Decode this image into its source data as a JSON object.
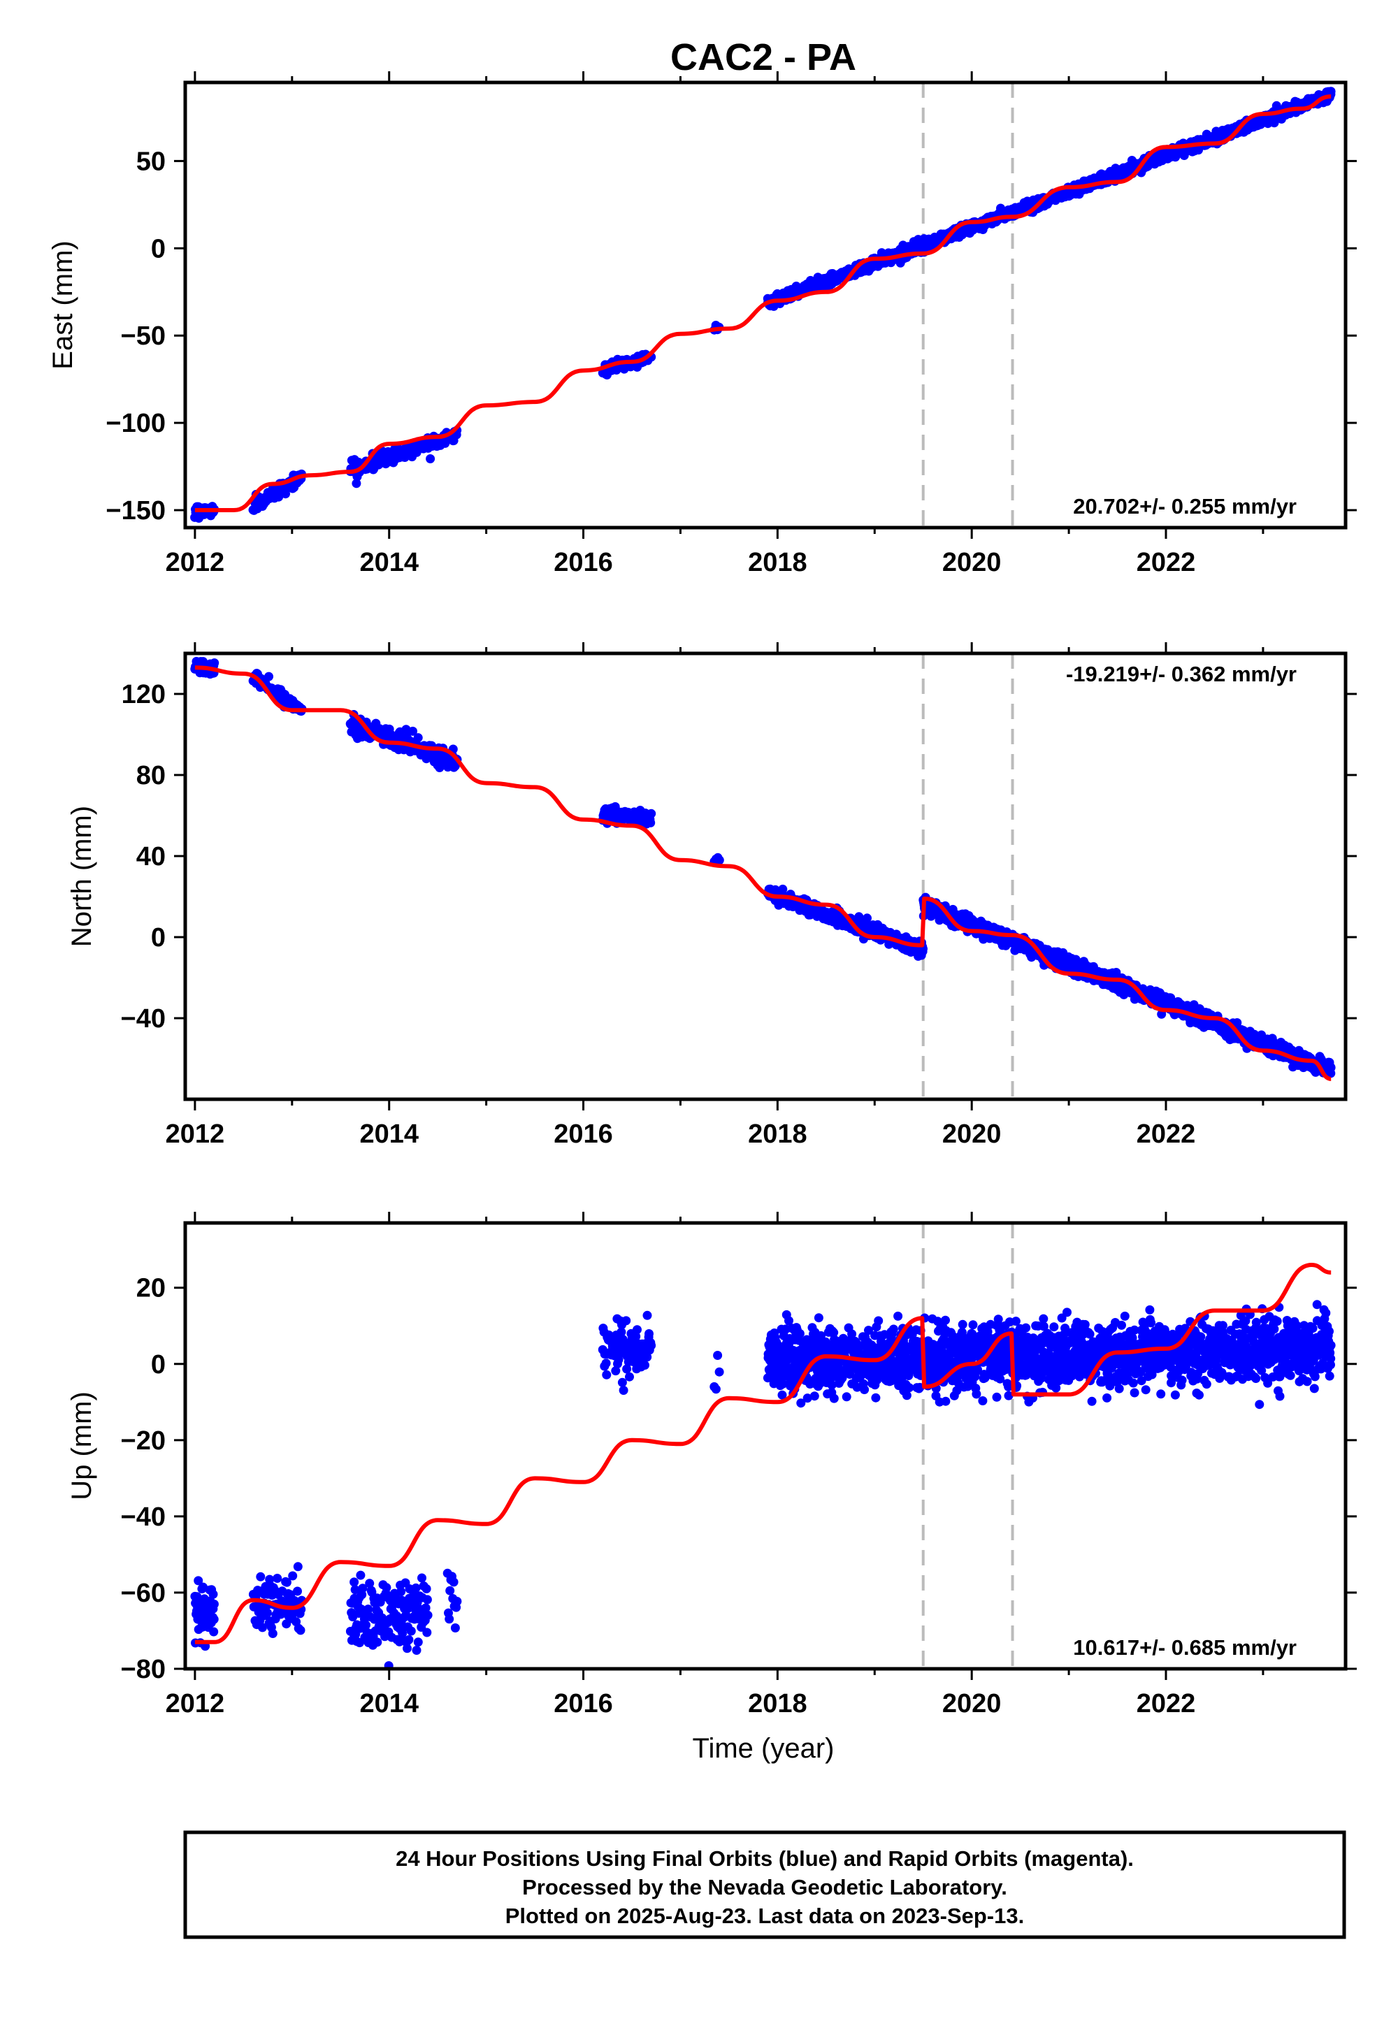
{
  "chart_data": {
    "type": "scatter",
    "title": "CAC2 - PA",
    "xlabel": "Time (year)",
    "xlim": [
      2011.9,
      2023.85
    ],
    "x_ticks": [
      2012,
      2014,
      2016,
      2018,
      2020,
      2022
    ],
    "x_tick_labels": [
      "2012",
      "2014",
      "2016",
      "2018",
      "2020",
      "2022"
    ],
    "event_lines": [
      2019.5,
      2020.42
    ],
    "colors": {
      "observed": "#0000ff",
      "model": "#ff0000",
      "event_line": "#bbbbbb"
    },
    "panels": [
      {
        "name": "east",
        "ylabel": "East (mm)",
        "ylim": [
          -160,
          95
        ],
        "y_ticks": [
          -150,
          -100,
          -50,
          0,
          50
        ],
        "y_tick_labels": [
          "−150",
          "−100",
          "−50",
          "0",
          "50"
        ],
        "rate_label": "20.702+/- 0.255 mm/yr",
        "rate_position": "bottom-right",
        "model": {
          "x": [
            2012.0,
            2012.4,
            2012.8,
            2013.2,
            2013.6,
            2014.0,
            2014.5,
            2015.0,
            2015.5,
            2016.0,
            2016.5,
            2017.0,
            2017.5,
            2018.0,
            2018.5,
            2019.0,
            2019.5,
            2020.0,
            2020.42,
            2021.0,
            2021.5,
            2022.0,
            2022.5,
            2023.0,
            2023.4,
            2023.7
          ],
          "y": [
            -150,
            -150,
            -135,
            -130,
            -128,
            -112,
            -108,
            -90,
            -88,
            -70,
            -65,
            -49,
            -46,
            -30,
            -25,
            -6,
            -3,
            15,
            18,
            35,
            38,
            58,
            60,
            77,
            80,
            87
          ]
        },
        "segments": [
          {
            "start": 2012.0,
            "end": 2012.2,
            "model_start": -150,
            "rate": 0,
            "scatter": 1.5,
            "n": 50
          },
          {
            "start": 2012.6,
            "end": 2013.1,
            "model_start": -148,
            "rate": 36,
            "scatter": 2.0,
            "n": 70
          },
          {
            "start": 2013.6,
            "end": 2014.7,
            "model_start": -127,
            "rate": 19,
            "scatter": 2.2,
            "n": 160
          },
          {
            "start": 2016.2,
            "end": 2016.7,
            "model_start": -70,
            "rate": 16,
            "scatter": 1.4,
            "n": 80
          },
          {
            "start": 2017.35,
            "end": 2017.4,
            "model_start": -45,
            "rate": 0,
            "scatter": 1.0,
            "n": 4
          },
          {
            "start": 2017.9,
            "end": 2023.7,
            "model_start": -31,
            "rate": 20.5,
            "scatter": 1.4,
            "n": 2000
          }
        ]
      },
      {
        "name": "north",
        "ylabel": "North (mm)",
        "ylim": [
          -80,
          140
        ],
        "y_ticks": [
          -40,
          0,
          40,
          80,
          120
        ],
        "y_tick_labels": [
          "−40",
          "0",
          "40",
          "80",
          "120"
        ],
        "rate_label": "-19.219+/- 0.362 mm/yr",
        "rate_position": "top-right",
        "model": {
          "x": [
            2012.0,
            2012.5,
            2013.0,
            2013.5,
            2014.0,
            2014.5,
            2015.0,
            2015.5,
            2016.0,
            2016.5,
            2017.0,
            2017.5,
            2018.0,
            2018.5,
            2019.0,
            2019.49,
            2019.51,
            2020.0,
            2020.42,
            2021.0,
            2021.5,
            2022.0,
            2022.5,
            2023.0,
            2023.5,
            2023.7
          ],
          "y": [
            133,
            130,
            112,
            112,
            96,
            93,
            76,
            74,
            58,
            55,
            38,
            35,
            20,
            16,
            0,
            -4,
            19,
            3,
            1,
            -18,
            -21,
            -36,
            -40,
            -56,
            -61,
            -70
          ]
        },
        "segments": [
          {
            "start": 2012.0,
            "end": 2012.2,
            "model_start": 134,
            "rate": -10,
            "scatter": 1.5,
            "n": 50
          },
          {
            "start": 2012.6,
            "end": 2013.1,
            "model_start": 128,
            "rate": -32,
            "scatter": 2.0,
            "n": 70
          },
          {
            "start": 2013.6,
            "end": 2014.7,
            "model_start": 106,
            "rate": -18,
            "scatter": 2.5,
            "n": 160
          },
          {
            "start": 2016.2,
            "end": 2016.7,
            "model_start": 61,
            "rate": -6,
            "scatter": 1.6,
            "n": 80
          },
          {
            "start": 2017.35,
            "end": 2017.4,
            "model_start": 38,
            "rate": 0,
            "scatter": 1.2,
            "n": 4
          },
          {
            "start": 2017.9,
            "end": 2019.5,
            "model_start": 22,
            "rate": -18,
            "scatter": 1.6,
            "n": 560
          },
          {
            "start": 2019.5,
            "end": 2023.7,
            "model_start": 16,
            "rate": -19.5,
            "scatter": 1.8,
            "n": 1470
          }
        ]
      },
      {
        "name": "up",
        "ylabel": "Up (mm)",
        "ylim": [
          -80,
          37
        ],
        "y_ticks": [
          -80,
          -60,
          -40,
          -20,
          0,
          20
        ],
        "y_tick_labels": [
          "−80",
          "−60",
          "−40",
          "−20",
          "0",
          "20"
        ],
        "rate_label": "10.617+/- 0.685 mm/yr",
        "rate_position": "bottom-right",
        "model": {
          "x": [
            2012.0,
            2012.2,
            2012.6,
            2013.0,
            2013.5,
            2014.0,
            2014.5,
            2015.0,
            2015.5,
            2016.0,
            2016.5,
            2017.0,
            2017.5,
            2018.0,
            2018.5,
            2019.0,
            2019.49,
            2019.51,
            2020.0,
            2020.41,
            2020.43,
            2021.0,
            2021.5,
            2022.0,
            2022.5,
            2023.0,
            2023.5,
            2023.7
          ],
          "y": [
            -73,
            -73,
            -62,
            -64,
            -52,
            -53,
            -41,
            -42,
            -30,
            -31,
            -20,
            -21,
            -9,
            -10,
            2,
            1,
            12,
            -6,
            0,
            8,
            -8,
            -8,
            3,
            4,
            14,
            14,
            26,
            24
          ]
        },
        "segments": [
          {
            "start": 2012.0,
            "end": 2012.2,
            "model_start": -66,
            "rate": 0,
            "scatter": 4.0,
            "n": 60
          },
          {
            "start": 2012.6,
            "end": 2013.1,
            "model_start": -64,
            "rate": 0,
            "scatter": 4.0,
            "n": 80
          },
          {
            "start": 2013.6,
            "end": 2014.4,
            "model_start": -66,
            "rate": 0,
            "scatter": 4.5,
            "n": 150
          },
          {
            "start": 2014.6,
            "end": 2014.7,
            "model_start": -60,
            "rate": 0,
            "scatter": 3.5,
            "n": 12
          },
          {
            "start": 2016.2,
            "end": 2016.7,
            "model_start": 4,
            "rate": 0,
            "scatter": 3.5,
            "n": 90
          },
          {
            "start": 2017.35,
            "end": 2017.4,
            "model_start": -5,
            "rate": 0,
            "scatter": 3.0,
            "n": 4
          },
          {
            "start": 2017.9,
            "end": 2023.7,
            "model_start": 1,
            "rate": 0.5,
            "scatter": 4.0,
            "n": 2000
          }
        ]
      }
    ]
  },
  "footer": {
    "line1": "24 Hour Positions Using Final Orbits (blue) and Rapid Orbits (magenta).",
    "line2": "Processed by the Nevada Geodetic Laboratory.",
    "line3": "Plotted on 2025-Aug-23. Last data on 2023-Sep-13."
  }
}
